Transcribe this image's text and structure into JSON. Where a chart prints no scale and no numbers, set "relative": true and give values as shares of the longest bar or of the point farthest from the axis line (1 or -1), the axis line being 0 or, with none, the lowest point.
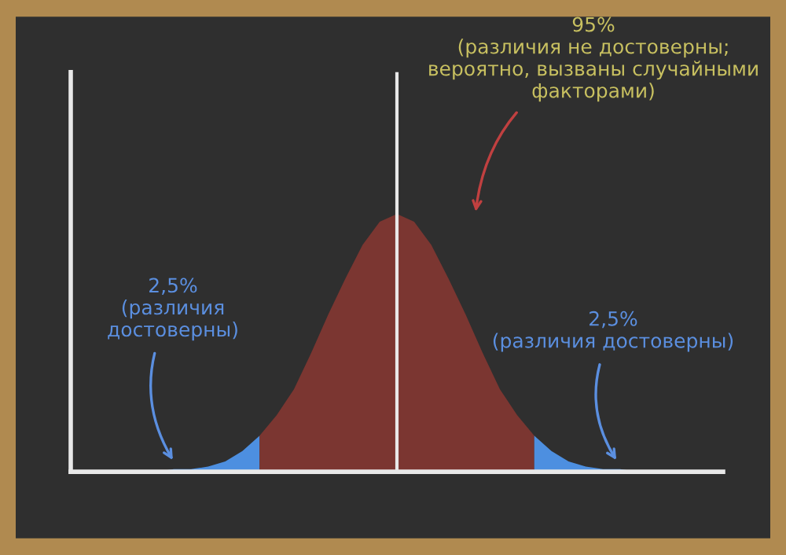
{
  "chart_data": {
    "type": "area",
    "relative": true,
    "categories": [
      null,
      null,
      null,
      null,
      null,
      null,
      null,
      null,
      null,
      null,
      null,
      null,
      null,
      null,
      null,
      null,
      null,
      null,
      null,
      null,
      null,
      null,
      null,
      null,
      null,
      null,
      null,
      null,
      null,
      null,
      null,
      null,
      null
    ],
    "series": [
      {
        "color": "#4d8fe0",
        "values": [
          null,
          null,
          0,
          0.01,
          0.01,
          0.02,
          0.04,
          0.08,
          0.14,
          null,
          null,
          null,
          null,
          null,
          null,
          null,
          null,
          null,
          null,
          null,
          null,
          null,
          null,
          null,
          null,
          null,
          null,
          null,
          null,
          null,
          null,
          null,
          null
        ]
      },
      {
        "color": "#7b3631",
        "values": [
          null,
          null,
          null,
          null,
          null,
          null,
          null,
          null,
          0.14,
          0.22,
          0.32,
          0.46,
          0.61,
          0.75,
          0.88,
          0.97,
          1,
          0.97,
          0.88,
          0.75,
          0.61,
          0.46,
          0.32,
          0.22,
          0.14,
          null,
          null,
          null,
          null,
          null,
          null,
          null,
          null
        ]
      },
      {
        "color": "#4d8fe0",
        "values": [
          null,
          null,
          null,
          null,
          null,
          null,
          null,
          null,
          null,
          null,
          null,
          null,
          null,
          null,
          null,
          null,
          null,
          null,
          null,
          null,
          null,
          null,
          null,
          null,
          0.14,
          0.08,
          0.04,
          0.02,
          0.01,
          0.01,
          0,
          null,
          null
        ]
      }
    ],
    "ref_lines": [
      {
        "axis": "x",
        "value": null,
        "color": "#e8e8e8"
      }
    ],
    "annotations": [
      "95%\n(различия не достоверны;\nвероятно, вызваны случайными\nфакторами)",
      "2,5%\n(различия\nдостоверны)",
      "2,5%\n(различия достоверны)"
    ]
  }
}
